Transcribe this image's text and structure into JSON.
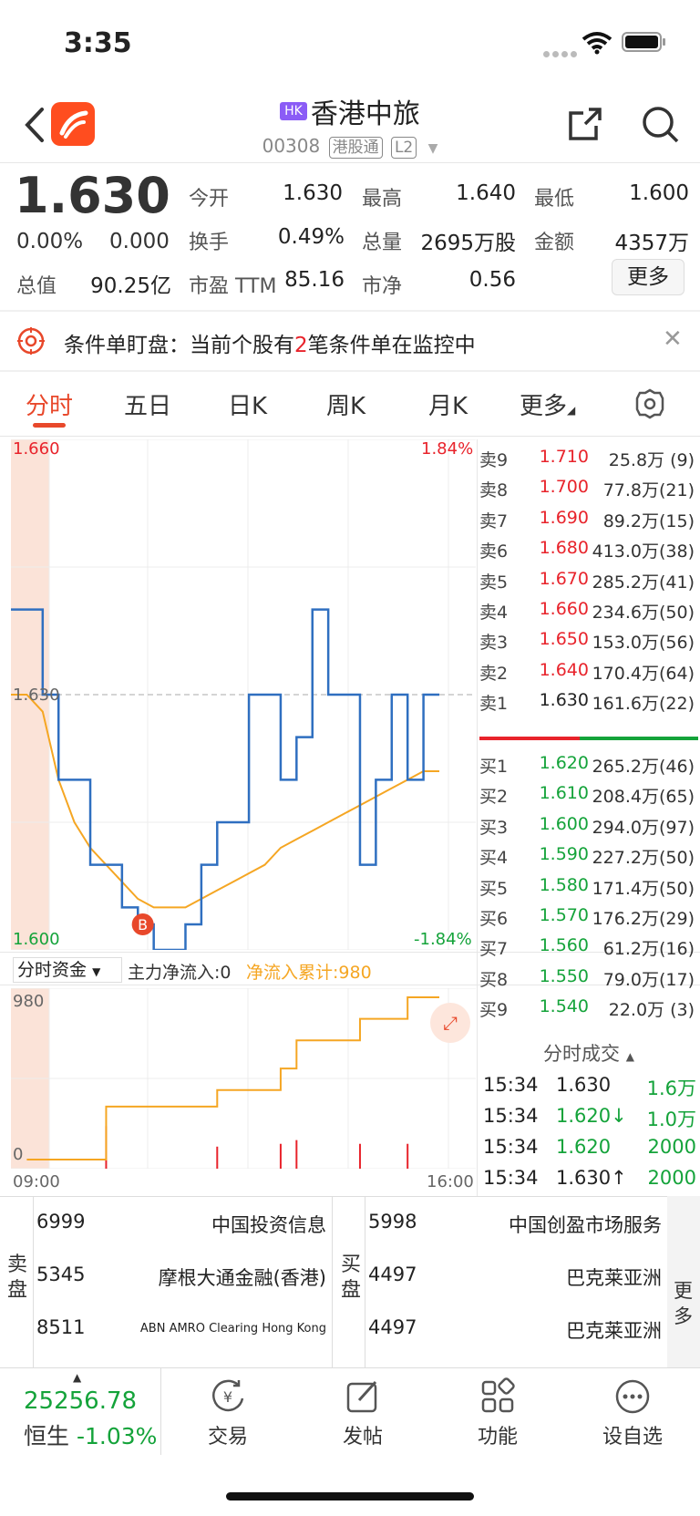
{
  "status": {
    "time": "3:35"
  },
  "nav": {
    "badge": "HK",
    "name": "香港中旅",
    "code": "00308",
    "tag1": "港股通",
    "tag2": "L2"
  },
  "quote": {
    "price": "1.630",
    "change_pct": "0.00%",
    "change_amt": "0.000",
    "open_label": "今开",
    "open": "1.630",
    "high_label": "最高",
    "high": "1.640",
    "low_label": "最低",
    "low": "1.600",
    "turnover_label": "换手",
    "turnover": "0.49%",
    "volume_label": "总量",
    "volume": "2695万股",
    "amount_label": "金额",
    "amount": "4357万",
    "mktcap_label": "总值",
    "mktcap": "90.25亿",
    "pe_label": "市盈 TTM",
    "pe": "85.16",
    "pb_label": "市净",
    "pb": "0.56",
    "more": "更多"
  },
  "alert": {
    "prefix": "条件单盯盘：当前个股有",
    "count": "2",
    "suffix": "笔条件单在监控中"
  },
  "tabs": [
    "分时",
    "五日",
    "日K",
    "周K",
    "月K",
    "更多"
  ],
  "chart_data": [
    {
      "type": "line",
      "title": "",
      "ylim": [
        1.6,
        1.66
      ],
      "y_labels": {
        "top": "1.660",
        "mid": "1.630",
        "bottom": "1.600",
        "top_pct": "1.84%",
        "bottom_pct": "-1.84%"
      },
      "xlim": [
        "09:00",
        "16:00"
      ],
      "series": [
        {
          "values": [
            1.64,
            1.64,
            1.63,
            1.62,
            1.62,
            1.61,
            1.61,
            1.605,
            1.603,
            1.6,
            1.6,
            1.603,
            1.61,
            1.615,
            1.615,
            1.63,
            1.63,
            1.62,
            1.625,
            1.64,
            1.63,
            1.63,
            1.61,
            1.62,
            1.63,
            1.62,
            1.63,
            1.63
          ]
        },
        {
          "values": [
            1.63,
            1.63,
            1.628,
            1.62,
            1.615,
            1.612,
            1.61,
            1.608,
            1.606,
            1.605,
            1.605,
            1.605,
            1.606,
            1.607,
            1.608,
            1.609,
            1.61,
            1.612,
            1.613,
            1.614,
            1.615,
            1.616,
            1.617,
            1.618,
            1.619,
            1.62,
            1.621,
            1.621
          ]
        }
      ],
      "markers": [
        {
          "label": "B"
        }
      ]
    },
    {
      "type": "bar",
      "title": "",
      "ylim": [
        0,
        980
      ],
      "y_labels": {
        "top": "980",
        "bottom": "0"
      },
      "series": [
        {
          "name": "净流入累计",
          "values": [
            0,
            0,
            0,
            0,
            0,
            0,
            320,
            320,
            320,
            320,
            320,
            320,
            320,
            420,
            420,
            420,
            420,
            550,
            720,
            720,
            720,
            720,
            850,
            850,
            850,
            980,
            980,
            980
          ]
        }
      ]
    }
  ],
  "flow": {
    "selector": "分时资金",
    "main": "主力净流入:0",
    "cum": "净流入累计:980"
  },
  "order_book": {
    "asks": [
      {
        "label": "卖9",
        "price": "1.710",
        "vol": "25.8万 (9)"
      },
      {
        "label": "卖8",
        "price": "1.700",
        "vol": "77.8万(21)"
      },
      {
        "label": "卖7",
        "price": "1.690",
        "vol": "89.2万(15)"
      },
      {
        "label": "卖6",
        "price": "1.680",
        "vol": "413.0万(38)"
      },
      {
        "label": "卖5",
        "price": "1.670",
        "vol": "285.2万(41)"
      },
      {
        "label": "卖4",
        "price": "1.660",
        "vol": "234.6万(50)"
      },
      {
        "label": "卖3",
        "price": "1.650",
        "vol": "153.0万(56)"
      },
      {
        "label": "卖2",
        "price": "1.640",
        "vol": "170.4万(64)"
      },
      {
        "label": "卖1",
        "price": "1.630",
        "vol": "161.6万(22)"
      }
    ],
    "bids": [
      {
        "label": "买1",
        "price": "1.620",
        "vol": "265.2万(46)"
      },
      {
        "label": "买2",
        "price": "1.610",
        "vol": "208.4万(65)"
      },
      {
        "label": "买3",
        "price": "1.600",
        "vol": "294.0万(97)"
      },
      {
        "label": "买4",
        "price": "1.590",
        "vol": "227.2万(50)"
      },
      {
        "label": "买5",
        "price": "1.580",
        "vol": "171.4万(50)"
      },
      {
        "label": "买6",
        "price": "1.570",
        "vol": "176.2万(29)"
      },
      {
        "label": "买7",
        "price": "1.560",
        "vol": "61.2万(16)"
      },
      {
        "label": "买8",
        "price": "1.550",
        "vol": "79.0万(17)"
      },
      {
        "label": "买9",
        "price": "1.540",
        "vol": "22.0万 (3)"
      }
    ]
  },
  "ticks": {
    "header": "分时成交",
    "rows": [
      {
        "time": "15:34",
        "price": "1.630",
        "vol": "1.6万"
      },
      {
        "time": "15:34",
        "price": "1.620↓",
        "vol": "1.0万"
      },
      {
        "time": "15:34",
        "price": "1.620",
        "vol": "2000"
      },
      {
        "time": "15:34",
        "price": "1.630↑",
        "vol": "2000"
      }
    ]
  },
  "brokers": {
    "sell_label": "卖盘",
    "buy_label": "买盘",
    "more_label": "更多",
    "sell": [
      {
        "id": "6999",
        "name": "中国投资信息"
      },
      {
        "id": "5345",
        "name": "摩根大通金融(香港)"
      },
      {
        "id": "8511",
        "name": "ABN AMRO Clearing Hong Kong"
      }
    ],
    "buy": [
      {
        "id": "5998",
        "name": "中国创盈市场服务"
      },
      {
        "id": "4497",
        "name": "巴克莱亚洲"
      },
      {
        "id": "4497",
        "name": "巴克莱亚洲"
      }
    ]
  },
  "bottom": {
    "index_value": "25256.78",
    "index_name": "恒生",
    "index_change": "-1.03%",
    "trade": "交易",
    "post": "发帖",
    "function": "功能",
    "watch": "设自选"
  }
}
